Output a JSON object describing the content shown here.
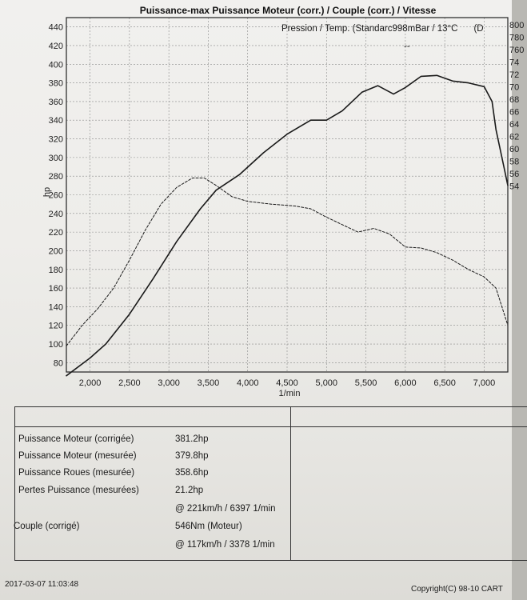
{
  "chart_data": {
    "type": "line",
    "title": "Puissance-max Puissance Moteur (corr.) / Couple (corr.) / Vitesse",
    "xlabel": "1/min",
    "ylabel": "hp",
    "xlim": [
      1700,
      7300
    ],
    "ylim": [
      70,
      450
    ],
    "x_ticks": [
      "2,000",
      "2,500",
      "3,000",
      "3,500",
      "4,000",
      "4,500",
      "5,000",
      "5,500",
      "6,000",
      "6,500",
      "7,000"
    ],
    "y_ticks": [
      80,
      100,
      120,
      140,
      160,
      180,
      200,
      220,
      240,
      260,
      280,
      300,
      320,
      340,
      360,
      380,
      400,
      420,
      440
    ],
    "right_ticks": [
      "800",
      "780",
      "760",
      "74",
      "72",
      "70",
      "68",
      "66",
      "64",
      "62",
      "60",
      "58",
      "56",
      "54"
    ],
    "grid": true,
    "series": [
      {
        "style": "solid",
        "x": [
          1700,
          2000,
          2200,
          2500,
          2800,
          3100,
          3400,
          3600,
          3900,
          4200,
          4500,
          4800,
          5000,
          5200,
          5450,
          5650,
          5850,
          6000,
          6200,
          6400,
          6600,
          6800,
          7000,
          7100,
          7150,
          7250,
          7300
        ],
        "y": [
          66,
          85,
          100,
          132,
          170,
          210,
          245,
          265,
          282,
          305,
          325,
          340,
          340,
          350,
          370,
          377,
          368,
          375,
          387,
          388,
          382,
          380,
          376,
          360,
          330,
          290,
          270
        ]
      },
      {
        "style": "dashed",
        "x": [
          1700,
          1900,
          2100,
          2300,
          2500,
          2700,
          2900,
          3100,
          3300,
          3450,
          3600,
          3800,
          4000,
          4300,
          4600,
          4800,
          5000,
          5200,
          5400,
          5600,
          5800,
          6000,
          6200,
          6400,
          6600,
          6800,
          7000,
          7150,
          7300
        ],
        "y": [
          98,
          120,
          138,
          160,
          190,
          222,
          250,
          268,
          278,
          278,
          270,
          258,
          253,
          250,
          248,
          245,
          236,
          228,
          220,
          224,
          218,
          204,
          203,
          198,
          190,
          180,
          172,
          160,
          120
        ]
      }
    ]
  },
  "results": {
    "rows": [
      {
        "label": "Puissance Moteur (corrigée)",
        "value": "381.2hp"
      },
      {
        "label": "Puissance Moteur (mesurée)",
        "value": "379.8hp"
      },
      {
        "label": "Puissance Roues (mesurée)",
        "value": "358.6hp"
      },
      {
        "label": "Pertes Puissance (mesurées)",
        "value": "21.2hp"
      },
      {
        "label": "",
        "value": "@ 221km/h / 6397 1/min"
      },
      {
        "label": "Couple (corrigé)",
        "value": "546Nm (Moteur)"
      },
      {
        "label": "",
        "value": "@ 117km/h / 3378 1/min"
      }
    ],
    "pressure_text": "Pression / Temp. (Standarc998mBar / 13°C",
    "pressure_extra": "(D",
    "pressure_value": "--"
  },
  "footer": {
    "timestamp": "2017-03-07 11:03:48",
    "copyright": "Copyright(C) 98-10 CART"
  }
}
